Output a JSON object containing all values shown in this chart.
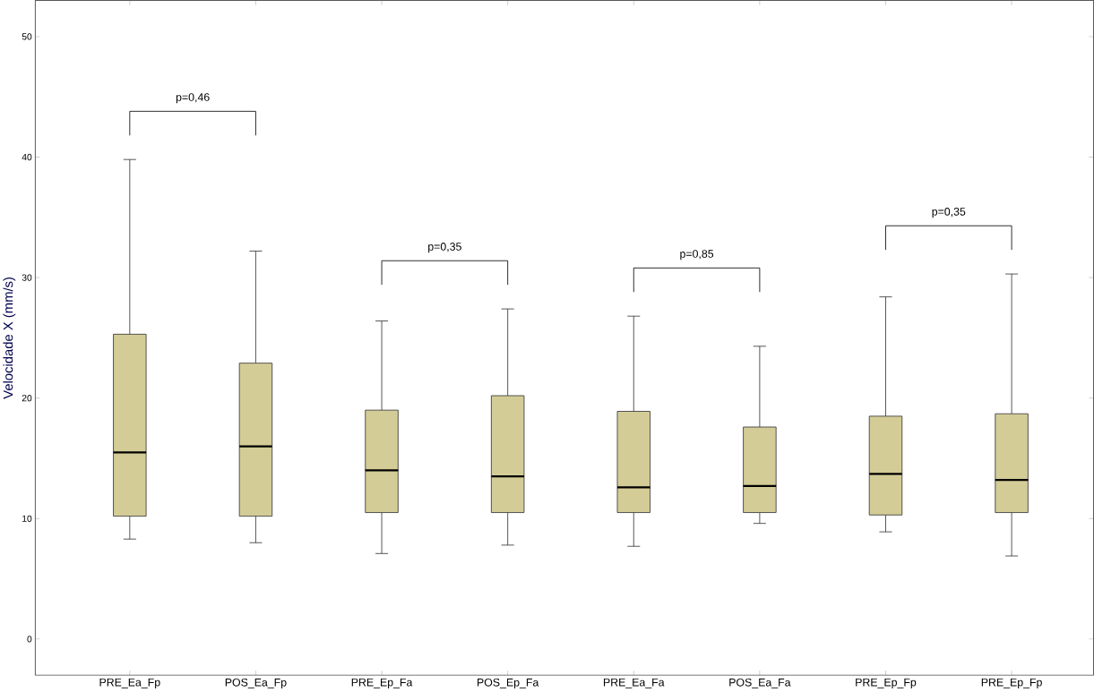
{
  "chart_data": {
    "type": "box",
    "ylabel": "Velocidade X  (mm/s)",
    "categories": [
      "PRE_Ea_Fp",
      "POS_Ea_Fp",
      "PRE_Ep_Fa",
      "POS_Ep_Fa",
      "PRE_Ea_Fa",
      "POS_Ea_Fa",
      "PRE_Ep_Fp",
      "PRE_Ep_Fp"
    ],
    "boxes": [
      {
        "low": 8.3,
        "q1": 10.2,
        "median": 15.5,
        "q3": 25.3,
        "high": 39.8
      },
      {
        "low": 8.0,
        "q1": 10.2,
        "median": 16.0,
        "q3": 22.9,
        "high": 32.2
      },
      {
        "low": 7.1,
        "q1": 10.5,
        "median": 14.0,
        "q3": 19.0,
        "high": 26.4
      },
      {
        "low": 7.8,
        "q1": 10.5,
        "median": 13.5,
        "q3": 20.2,
        "high": 27.4
      },
      {
        "low": 7.7,
        "q1": 10.5,
        "median": 12.6,
        "q3": 18.9,
        "high": 26.8
      },
      {
        "low": 9.6,
        "q1": 10.5,
        "median": 12.7,
        "q3": 17.6,
        "high": 24.3
      },
      {
        "low": 8.9,
        "q1": 10.3,
        "median": 13.7,
        "q3": 18.5,
        "high": 28.4
      },
      {
        "low": 6.9,
        "q1": 10.5,
        "median": 13.2,
        "q3": 18.7,
        "high": 30.3
      }
    ],
    "color": "#d4cc96",
    "ylim": [
      -3,
      53
    ],
    "yticks": [
      0,
      10,
      20,
      30,
      40,
      50
    ],
    "grid": false,
    "annotations": [
      "p=0,46",
      "p=0,35",
      "p=0,85",
      "p=0,35"
    ]
  }
}
